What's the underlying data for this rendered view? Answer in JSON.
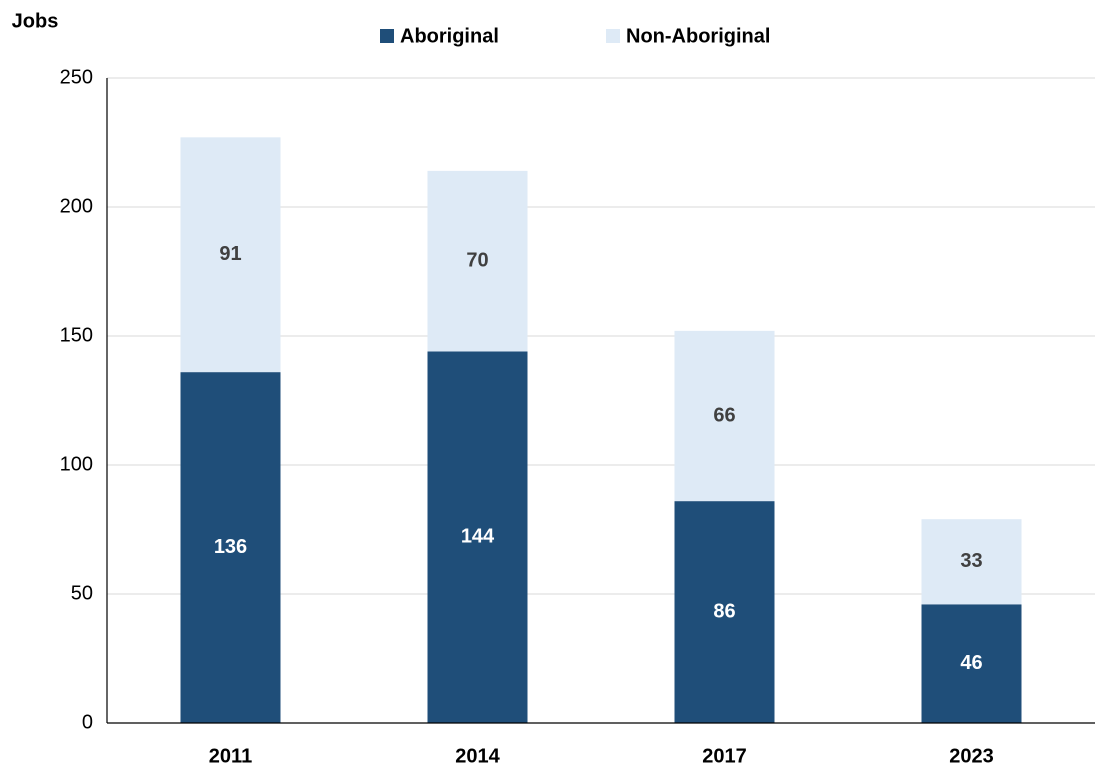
{
  "chart_data": {
    "type": "stacked_bar",
    "y_axis_label": "Jobs",
    "categories": [
      "2011",
      "2014",
      "2017",
      "2023"
    ],
    "series": [
      {
        "name": "Aboriginal",
        "color": "#1f4e79",
        "label_color": "#ffffff",
        "values": [
          136,
          144,
          86,
          46
        ]
      },
      {
        "name": "Non-Aboriginal",
        "color": "#deeaf6",
        "label_color": "#404040",
        "values": [
          91,
          70,
          66,
          33
        ]
      }
    ],
    "ylim": [
      0,
      250
    ],
    "yticks": [
      0,
      50,
      100,
      150,
      200,
      250
    ],
    "grid": true,
    "legend": "top"
  }
}
